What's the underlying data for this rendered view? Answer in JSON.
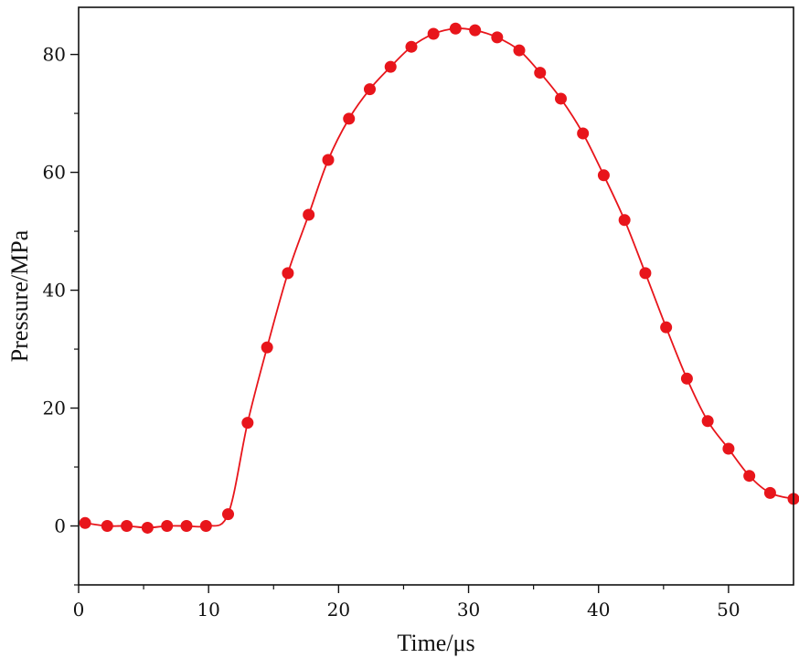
{
  "chart_data": {
    "type": "line",
    "title": "",
    "xlabel": "Time/μs",
    "ylabel": "Pressure/MPa",
    "xlim": [
      0,
      55
    ],
    "ylim": [
      -10,
      88
    ],
    "xticks": [
      0,
      10,
      20,
      30,
      40,
      50
    ],
    "yticks": [
      0,
      20,
      40,
      60,
      80
    ],
    "series_color": "#e8151b",
    "series": [
      {
        "name": "Pressure",
        "x": [
          0.5,
          2.2,
          3.7,
          5.3,
          6.8,
          8.3,
          9.8,
          11.5,
          13.0,
          14.5,
          16.1,
          17.7,
          19.2,
          20.8,
          22.4,
          24.0,
          25.6,
          27.3,
          29.0,
          30.5,
          32.2,
          33.9,
          35.5,
          37.1,
          38.8,
          40.4,
          42.0,
          43.6,
          45.2,
          46.8,
          48.4,
          50.0,
          51.6,
          53.2,
          55.0
        ],
        "y": [
          0.5,
          0,
          0,
          -0.3,
          0,
          0,
          0,
          2,
          17.5,
          30.3,
          42.9,
          52.8,
          62.1,
          69.1,
          74.1,
          77.9,
          81.3,
          83.5,
          84.4,
          84.1,
          82.9,
          80.7,
          76.9,
          72.5,
          66.6,
          59.5,
          51.9,
          42.9,
          33.7,
          25.0,
          17.8,
          13.1,
          8.5,
          5.6,
          4.6
        ]
      }
    ]
  }
}
